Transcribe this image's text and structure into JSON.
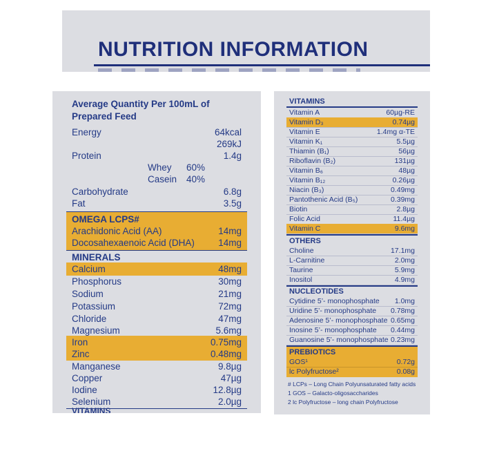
{
  "title": "NUTRITION INFORMATION",
  "left": {
    "intro": "Average Quantity Per 100mL of Prepared Feed",
    "energy": {
      "label": "Energy",
      "kcal": "64kcal",
      "kj": "269kJ"
    },
    "protein": {
      "label": "Protein",
      "value": "1.4g"
    },
    "whey": {
      "label": "Whey",
      "value": "60%"
    },
    "casein": {
      "label": "Casein",
      "value": "40%"
    },
    "carbohydrate": {
      "label": "Carbohydrate",
      "value": "6.8g"
    },
    "fat": {
      "label": "Fat",
      "value": "3.5g"
    },
    "omega_heading": "OMEGA LCPS#",
    "omega": [
      {
        "label": "Arachidonic Acid (AA)",
        "value": "14mg"
      },
      {
        "label": "Docosahexaenoic Acid (DHA)",
        "value": "14mg"
      }
    ],
    "minerals_heading": "MINERALS",
    "minerals": [
      {
        "label": "Calcium",
        "value": "48mg"
      },
      {
        "label": "Phosphorus",
        "value": "30mg"
      },
      {
        "label": "Sodium",
        "value": "21mg"
      },
      {
        "label": "Potassium",
        "value": "72mg"
      },
      {
        "label": "Chloride",
        "value": "47mg"
      },
      {
        "label": "Magnesium",
        "value": "5.6mg"
      },
      {
        "label": "Iron",
        "value": "0.75mg"
      },
      {
        "label": "Zinc",
        "value": "0.48mg"
      },
      {
        "label": "Manganese",
        "value": "9.8µg"
      },
      {
        "label": "Copper",
        "value": "47µg"
      },
      {
        "label": "Iodine",
        "value": "12.8µg"
      },
      {
        "label": "Selenium",
        "value": "2.0µg"
      }
    ],
    "cut_heading": "VITAMINS"
  },
  "right": {
    "vitamins_heading": "VITAMINS",
    "vitamins": [
      {
        "label": "Vitamin A",
        "value": "60µg-RE"
      },
      {
        "label": "Vitamin D₃",
        "value": "0.74µg"
      },
      {
        "label": "Vitamin E",
        "value": "1.4mg α-TE"
      },
      {
        "label": "Vitamin K₁",
        "value": "5.5µg"
      },
      {
        "label": "Thiamin (B₁)",
        "value": "56µg"
      },
      {
        "label": "Riboflavin (B₂)",
        "value": "131µg"
      },
      {
        "label": "Vitamin B₆",
        "value": "48µg"
      },
      {
        "label": "Vitamin B₁₂",
        "value": "0.26µg"
      },
      {
        "label": "Niacin (B₃)",
        "value": "0.49mg"
      },
      {
        "label": "Pantothenic Acid (B₅)",
        "value": "0.39mg"
      },
      {
        "label": "Biotin",
        "value": "2.8µg"
      },
      {
        "label": "Folic Acid",
        "value": "11.4µg"
      },
      {
        "label": "Vitamin C",
        "value": "9.6mg"
      }
    ],
    "others_heading": "OTHERS",
    "others": [
      {
        "label": "Choline",
        "value": "17.1mg"
      },
      {
        "label": "L-Carnitine",
        "value": "2.0mg"
      },
      {
        "label": "Taurine",
        "value": "5.9mg"
      },
      {
        "label": "Inositol",
        "value": "4.9mg"
      }
    ],
    "nucleotides_heading": "NUCLEOTIDES",
    "nucleotides": [
      {
        "label": "Cytidine 5’- monophosphate",
        "value": "1.0mg"
      },
      {
        "label": "Uridine 5’- monophosphate",
        "value": "0.78mg"
      },
      {
        "label": "Adenosine 5’- monophosphate",
        "value": "0.65mg"
      },
      {
        "label": "Inosine 5’- monophosphate",
        "value": "0.44mg"
      },
      {
        "label": "Guanosine 5’- monophosphate",
        "value": "0.23mg"
      }
    ],
    "prebiotics_heading": "PREBIOTICS",
    "prebiotics": [
      {
        "label": "GOS¹",
        "value": "0.72g"
      },
      {
        "label": "lc Polyfructose²",
        "value": "0.08g"
      }
    ],
    "footnotes": [
      "# LCPs – Long Chain Polyunsaturated fatty acids",
      "1 GOS – Galacto-oligosaccharides",
      "2 lc Polyfructose – long chain Polyfructose"
    ]
  },
  "colors": {
    "text": "#243a86",
    "highlight": "#e8ad33",
    "panel": "#dcdde2"
  }
}
